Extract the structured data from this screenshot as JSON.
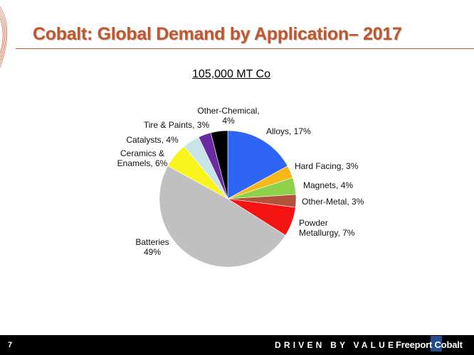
{
  "slide": {
    "title": "Cobalt:  Global Demand by Application– 2017",
    "page_number": "7",
    "tagline": "DRIVEN BY VALUE",
    "brand": "Freeport Cobalt",
    "brand_color": "#c2552b",
    "footer_color": "#000000"
  },
  "chart_data": {
    "type": "pie",
    "title": "105,000 MT Co",
    "unit": "%",
    "start_angle_deg": 0,
    "direction": "clockwise",
    "slices": [
      {
        "name": "Alloys",
        "value": 17,
        "label_lines": [
          "Alloys, 17%"
        ],
        "color": "#2f65f5"
      },
      {
        "name": "Hard Facing",
        "value": 3,
        "label_lines": [
          "Hard Facing, 3%"
        ],
        "color": "#f7b81b"
      },
      {
        "name": "Magnets",
        "value": 4,
        "label_lines": [
          "Magnets, 4%"
        ],
        "color": "#8ed14a"
      },
      {
        "name": "Other-Metal",
        "value": 3,
        "label_lines": [
          "Other-Metal, 3%"
        ],
        "color": "#b0533a"
      },
      {
        "name": "Powder Metallurgy",
        "value": 7,
        "label_lines": [
          "Powder",
          "Metallurgy, 7%"
        ],
        "color": "#f41414"
      },
      {
        "name": "Batteries",
        "value": 49,
        "label_lines": [
          "Batteries",
          "49%"
        ],
        "color": "#c0c0c0"
      },
      {
        "name": "Ceramics & Enamels",
        "value": 6,
        "label_lines": [
          "Ceramics &",
          "Enamels, 6%"
        ],
        "color": "#f8f41c"
      },
      {
        "name": "Catalysts",
        "value": 4,
        "label_lines": [
          "Catalysts, 4%"
        ],
        "color": "#c7e4e8"
      },
      {
        "name": "Tire & Paints",
        "value": 3,
        "label_lines": [
          "Tire & Paints, 3%"
        ],
        "color": "#6a2aa3"
      },
      {
        "name": "Other-Chemical",
        "value": 4,
        "label_lines": [
          "Other-Chemical,",
          "4%"
        ],
        "color": "#000000"
      }
    ]
  }
}
